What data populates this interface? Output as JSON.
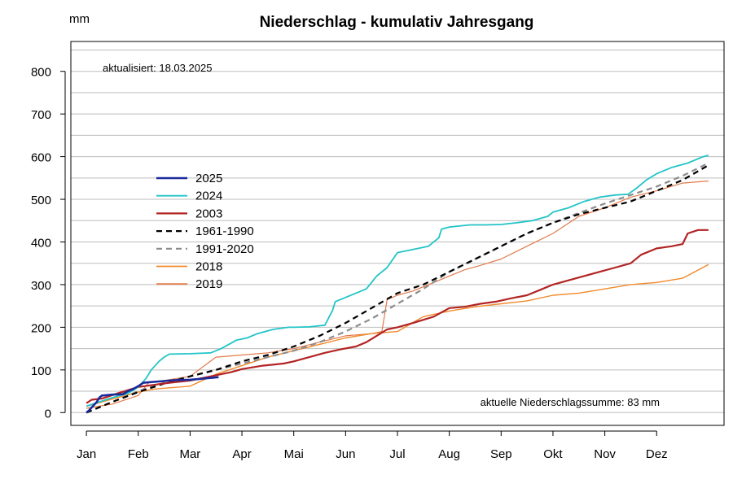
{
  "chart_data": {
    "type": "line",
    "title": "Niederschlag - kumulativ Jahresgang",
    "ylabel": "mm",
    "xlabel": "",
    "ylim": [
      -30,
      870
    ],
    "xlim": [
      -0.3,
      12.3
    ],
    "yticks": [
      0,
      100,
      200,
      300,
      400,
      500,
      600,
      700,
      800
    ],
    "ytick_labels": [
      "0",
      "100",
      "200",
      "300",
      "400",
      "500",
      "600",
      "700",
      "800"
    ],
    "xticks": [
      0,
      1,
      2,
      3,
      4,
      5,
      6,
      7,
      8,
      9,
      10,
      11
    ],
    "xtick_labels": [
      "Jan",
      "Feb",
      "Mar",
      "Apr",
      "Mai",
      "Jun",
      "Jul",
      "Aug",
      "Sep",
      "Okt",
      "Nov",
      "Dez"
    ],
    "grid_y": [
      -50,
      0,
      50,
      100,
      150,
      200,
      250,
      300,
      350,
      400,
      450,
      500,
      550,
      600,
      650,
      700,
      750,
      800,
      850
    ],
    "annotation_updated": "aktualisiert: 18.03.2025",
    "annotation_total": "aktuelle Niederschlagssumme: 83 mm",
    "legend_position": "left-middle",
    "series": [
      {
        "name": "2025",
        "color": "#1a2a9a",
        "width": 2.6,
        "dash": "",
        "x": [
          0,
          0.05,
          0.1,
          0.2,
          0.25,
          0.3,
          0.5,
          0.7,
          0.8,
          0.9,
          1.0,
          1.1,
          1.3,
          1.5,
          1.7,
          2.0,
          2.2,
          2.45,
          2.55
        ],
        "y": [
          0,
          5,
          12,
          25,
          35,
          40,
          42,
          43,
          50,
          55,
          62,
          70,
          72,
          74,
          76,
          77,
          79,
          82,
          83
        ]
      },
      {
        "name": "2024",
        "color": "#22c4c8",
        "width": 1.8,
        "dash": "",
        "x": [
          0,
          0.5,
          0.8,
          1.0,
          1.15,
          1.25,
          1.4,
          1.5,
          1.6,
          2.0,
          2.4,
          2.6,
          2.9,
          3.1,
          3.3,
          3.6,
          3.9,
          4.0,
          4.3,
          4.6,
          4.75,
          4.8,
          4.9,
          5.0,
          5.2,
          5.4,
          5.6,
          5.8,
          6.0,
          6.2,
          6.4,
          6.6,
          6.8,
          6.85,
          7.0,
          7.4,
          7.7,
          8.0,
          8.3,
          8.6,
          8.9,
          9.0,
          9.3,
          9.6,
          9.9,
          10.2,
          10.45,
          10.6,
          10.8,
          11.0,
          11.3,
          11.6,
          11.9,
          12.0
        ],
        "y": [
          15,
          35,
          45,
          60,
          80,
          100,
          120,
          130,
          137,
          138,
          140,
          150,
          170,
          175,
          185,
          195,
          200,
          200,
          201,
          205,
          240,
          260,
          265,
          270,
          280,
          290,
          320,
          340,
          375,
          380,
          385,
          390,
          410,
          430,
          435,
          440,
          440,
          441,
          445,
          450,
          460,
          470,
          480,
          495,
          505,
          510,
          512,
          525,
          545,
          560,
          575,
          585,
          600,
          603
        ]
      },
      {
        "name": "2003",
        "color": "#b32424",
        "width": 2.2,
        "dash": "",
        "x": [
          0,
          0.1,
          0.3,
          0.6,
          1.0,
          1.3,
          1.6,
          2.0,
          2.4,
          2.8,
          3.0,
          3.4,
          3.8,
          4.0,
          4.3,
          4.6,
          4.9,
          5.2,
          5.4,
          5.6,
          5.8,
          6.0,
          6.3,
          6.7,
          7.0,
          7.3,
          7.6,
          7.9,
          8.2,
          8.5,
          8.8,
          9.0,
          9.3,
          9.6,
          9.9,
          10.2,
          10.5,
          10.7,
          11.0,
          11.3,
          11.5,
          11.6,
          11.8,
          12.0
        ],
        "y": [
          22,
          30,
          33,
          45,
          60,
          65,
          70,
          75,
          85,
          95,
          102,
          110,
          115,
          120,
          130,
          140,
          148,
          155,
          165,
          180,
          195,
          200,
          210,
          225,
          245,
          248,
          255,
          260,
          268,
          275,
          290,
          300,
          310,
          320,
          330,
          340,
          350,
          370,
          385,
          390,
          395,
          420,
          428,
          428
        ]
      },
      {
        "name": "1961-1990",
        "color": "#000000",
        "width": 2.2,
        "dash": "7,5",
        "x": [
          0,
          0.5,
          1.0,
          1.5,
          2.0,
          2.5,
          3.0,
          3.5,
          4.0,
          4.5,
          5.0,
          5.5,
          6.0,
          6.5,
          7.0,
          7.5,
          8.0,
          8.5,
          9.0,
          9.5,
          10.0,
          10.5,
          11.0,
          11.5,
          12.0
        ],
        "y": [
          0,
          25,
          48,
          68,
          85,
          100,
          120,
          135,
          155,
          180,
          210,
          245,
          280,
          300,
          330,
          360,
          390,
          420,
          445,
          465,
          480,
          495,
          520,
          545,
          580
        ]
      },
      {
        "name": "1991-2020",
        "color": "#8c8c8c",
        "width": 2.2,
        "dash": "7,5",
        "x": [
          0,
          0.5,
          1.0,
          1.5,
          2.0,
          2.5,
          3.0,
          3.5,
          4.0,
          4.5,
          5.0,
          5.5,
          6.0,
          6.5,
          7.0,
          7.5,
          8.0,
          8.5,
          9.0,
          9.5,
          10.0,
          10.5,
          11.0,
          11.5,
          12.0
        ],
        "y": [
          0,
          25,
          50,
          70,
          85,
          100,
          115,
          130,
          145,
          165,
          190,
          220,
          255,
          290,
          330,
          360,
          390,
          420,
          445,
          468,
          490,
          510,
          530,
          555,
          585
        ]
      },
      {
        "name": "2018",
        "color": "#f08a2a",
        "width": 1.4,
        "dash": "",
        "x": [
          0,
          0.3,
          0.6,
          1.0,
          1.3,
          1.6,
          1.8,
          2.0,
          2.5,
          3.0,
          3.5,
          4.0,
          4.5,
          5.0,
          5.5,
          6.0,
          6.5,
          7.0,
          7.5,
          8.0,
          8.5,
          9.0,
          9.5,
          10.0,
          10.5,
          11.0,
          11.5,
          12.0
        ],
        "y": [
          15,
          25,
          35,
          48,
          55,
          58,
          60,
          62,
          90,
          110,
          130,
          145,
          160,
          175,
          185,
          190,
          225,
          238,
          248,
          255,
          262,
          275,
          280,
          290,
          300,
          305,
          315,
          347
        ]
      },
      {
        "name": "2019",
        "color": "#e27a4a",
        "width": 1.2,
        "dash": "",
        "x": [
          0,
          0.5,
          1.0,
          1.2,
          1.5,
          2.0,
          2.5,
          3.0,
          3.5,
          4.0,
          4.5,
          5.0,
          5.5,
          5.7,
          5.8,
          6.0,
          6.3,
          6.6,
          7.0,
          7.3,
          7.6,
          8.0,
          8.5,
          9.0,
          9.5,
          10.0,
          10.5,
          11.0,
          11.5,
          12.0
        ],
        "y": [
          10,
          20,
          40,
          70,
          75,
          85,
          130,
          135,
          140,
          150,
          165,
          180,
          185,
          190,
          265,
          275,
          285,
          300,
          320,
          335,
          345,
          360,
          390,
          420,
          460,
          480,
          505,
          520,
          538,
          543
        ]
      }
    ]
  }
}
